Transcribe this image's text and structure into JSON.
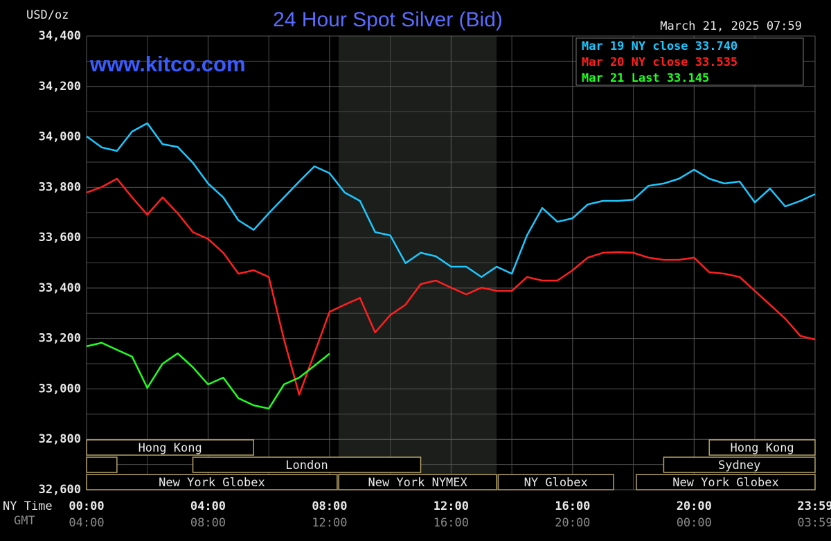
{
  "chart_data": {
    "type": "line",
    "title": "24 Hour Spot Silver (Bid)",
    "y_unit": "USD/oz",
    "timestamp": "March 21, 2025 07:59",
    "watermark": "www.kitco.com",
    "x_label": "NY Time",
    "x2_label": "GMT",
    "x": [
      0,
      0.5,
      1,
      1.5,
      2,
      2.5,
      3,
      3.5,
      4,
      4.5,
      5,
      5.5,
      6,
      6.5,
      7,
      7.5,
      8,
      8.5,
      9,
      9.5,
      10,
      10.5,
      11,
      11.5,
      12,
      12.5,
      13,
      13.5,
      14,
      14.5,
      15,
      15.5,
      16,
      16.5,
      17,
      17.5,
      18,
      18.5,
      19,
      19.5,
      20,
      20.5,
      21,
      21.5,
      22,
      22.5,
      23,
      23.5,
      23.983
    ],
    "series": [
      {
        "name": "Mar 19 NY close 33.740",
        "color": "#1ec8ff",
        "values": [
          34.002,
          33.958,
          33.944,
          34.021,
          34.054,
          33.971,
          33.96,
          33.897,
          33.815,
          33.76,
          33.669,
          33.631,
          33.697,
          33.76,
          33.823,
          33.883,
          33.856,
          33.779,
          33.746,
          33.622,
          33.609,
          33.499,
          33.54,
          33.526,
          33.485,
          33.485,
          33.444,
          33.485,
          33.457,
          33.609,
          33.718,
          33.663,
          33.677,
          33.732,
          33.746,
          33.746,
          33.751,
          33.806,
          33.815,
          33.834,
          33.87,
          33.834,
          33.815,
          33.823,
          33.74,
          33.795,
          33.724,
          33.746,
          33.773
        ]
      },
      {
        "name": "Mar 20 NY close 33.535",
        "color": "#ff2020",
        "values": [
          33.779,
          33.801,
          33.834,
          33.76,
          33.691,
          33.76,
          33.697,
          33.622,
          33.595,
          33.54,
          33.457,
          33.471,
          33.444,
          33.196,
          32.977,
          33.141,
          33.306,
          33.334,
          33.361,
          33.224,
          33.293,
          33.334,
          33.416,
          33.43,
          33.402,
          33.375,
          33.402,
          33.389,
          33.389,
          33.444,
          33.43,
          33.43,
          33.471,
          33.521,
          33.54,
          33.543,
          33.54,
          33.521,
          33.512,
          33.512,
          33.521,
          33.463,
          33.457,
          33.444,
          33.389,
          33.334,
          33.279,
          33.21,
          33.196
        ]
      },
      {
        "name": "Mar 21 Last 33.145",
        "color": "#22ff22",
        "values": [
          33.169,
          33.183,
          33.155,
          33.128,
          33.004,
          33.1,
          33.141,
          33.086,
          33.018,
          33.045,
          32.963,
          32.935,
          32.922,
          33.018,
          33.045,
          33.092,
          33.14,
          null,
          null,
          null,
          null,
          null,
          null,
          null,
          null,
          null,
          null,
          null,
          null,
          null,
          null,
          null,
          null,
          null,
          null,
          null,
          null,
          null,
          null,
          null,
          null,
          null,
          null,
          null,
          null,
          null,
          null,
          null,
          null
        ]
      }
    ],
    "xlim": [
      0,
      23.983
    ],
    "ylim": [
      32.6,
      34.4
    ],
    "yticks": [
      {
        "value": 32.6,
        "label": "32,600"
      },
      {
        "value": 32.8,
        "label": "32,800"
      },
      {
        "value": 33.0,
        "label": "33,000"
      },
      {
        "value": 33.2,
        "label": "33,200"
      },
      {
        "value": 33.4,
        "label": "33,400"
      },
      {
        "value": 33.6,
        "label": "33,600"
      },
      {
        "value": 33.8,
        "label": "33,800"
      },
      {
        "value": 34.0,
        "label": "34,000"
      },
      {
        "value": 34.2,
        "label": "34,200"
      },
      {
        "value": 34.4,
        "label": "34,400"
      }
    ],
    "minor_yticks": [
      32.7,
      32.9,
      33.1,
      33.3,
      33.5,
      33.7,
      33.9,
      34.1,
      34.3
    ],
    "xticks": [
      {
        "value": 0,
        "label": "00:00"
      },
      {
        "value": 4,
        "label": "04:00"
      },
      {
        "value": 8,
        "label": "08:00"
      },
      {
        "value": 12,
        "label": "12:00"
      },
      {
        "value": 16,
        "label": "16:00"
      },
      {
        "value": 20,
        "label": "20:00"
      },
      {
        "value": 23.983,
        "label": "23:59"
      }
    ],
    "x2ticks": [
      {
        "value": 0,
        "label": "04:00"
      },
      {
        "value": 4,
        "label": "08:00"
      },
      {
        "value": 8,
        "label": "12:00"
      },
      {
        "value": 12,
        "label": "16:00"
      },
      {
        "value": 16,
        "label": "20:00"
      },
      {
        "value": 20,
        "label": "00:00"
      },
      {
        "value": 23.983,
        "label": "03:59"
      }
    ],
    "minor_xticks": [
      2,
      6,
      10,
      14,
      18,
      22
    ],
    "shade_x": [
      8.3,
      13.5
    ],
    "grid": true,
    "legend": "upper right",
    "sessions": [
      {
        "label": "Hong Kong",
        "row": 0,
        "x": [
          0,
          5.5
        ]
      },
      {
        "label": "Hong Kong",
        "row": 0,
        "x": [
          20.5,
          23.983
        ]
      },
      {
        "label": null,
        "row": 1,
        "x": [
          0,
          1
        ]
      },
      {
        "label": "London",
        "row": 1,
        "x": [
          3.5,
          11
        ]
      },
      {
        "label": "Sydney",
        "row": 1,
        "x": [
          19,
          23.983
        ]
      },
      {
        "label": "New York Globex",
        "row": 2,
        "x": [
          0,
          8.25
        ]
      },
      {
        "label": "New York NYMEX",
        "row": 2,
        "x": [
          8.3,
          13.5
        ]
      },
      {
        "label": "NY Globex",
        "row": 2,
        "x": [
          13.55,
          17.35
        ]
      },
      {
        "label": "New York Globex",
        "row": 2,
        "x": [
          18.1,
          23.983
        ]
      }
    ]
  }
}
